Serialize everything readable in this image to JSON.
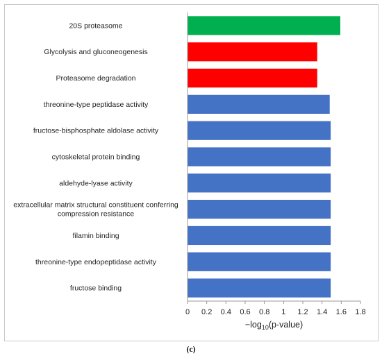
{
  "chart_data": {
    "type": "bar",
    "orientation": "horizontal",
    "categories": [
      "20S proteasome",
      "Glycolysis and gluconeogenesis",
      "Proteasome degradation",
      "threonine-type peptidase activity",
      "fructose-bisphosphate aldolase activity",
      "cytoskeletal protein binding",
      "aldehyde-lyase activity",
      "extracellular matrix structural constituent conferring compression resistance",
      "filamin binding",
      "threonine-type endopeptidase activity",
      "fructose binding"
    ],
    "category_label_lines": [
      [
        "20S proteasome"
      ],
      [
        "Glycolysis and gluconeogenesis"
      ],
      [
        "Proteasome degradation"
      ],
      [
        "threonine-type peptidase activity"
      ],
      [
        "fructose-bisphosphate aldolase activity"
      ],
      [
        "cytoskeletal protein binding"
      ],
      [
        "aldehyde-lyase activity"
      ],
      [
        "extracellular matrix structural constituent conferring",
        "compression resistance"
      ],
      [
        "filamin binding"
      ],
      [
        "threonine-type endopeptidase activity"
      ],
      [
        "fructose binding"
      ]
    ],
    "values": [
      1.59,
      1.35,
      1.35,
      1.48,
      1.49,
      1.49,
      1.49,
      1.49,
      1.49,
      1.49,
      1.49
    ],
    "bar_colors": [
      "#00b050",
      "#ff0000",
      "#ff0000",
      "#4472c4",
      "#4472c4",
      "#4472c4",
      "#4472c4",
      "#4472c4",
      "#4472c4",
      "#4472c4",
      "#4472c4"
    ],
    "xlim": [
      0,
      1.8
    ],
    "xticks": [
      "0",
      "0.2",
      "0.4",
      "0.6",
      "0.8",
      "1",
      "1.2",
      "1.4",
      "1.6",
      "1.8"
    ],
    "xlabel": "−log10(p-value)",
    "xlabel_parts": {
      "prefix": "−log",
      "sub": "10",
      "suffix": "(p-value)"
    },
    "grid": false,
    "legend": "none"
  },
  "caption": "(c)"
}
